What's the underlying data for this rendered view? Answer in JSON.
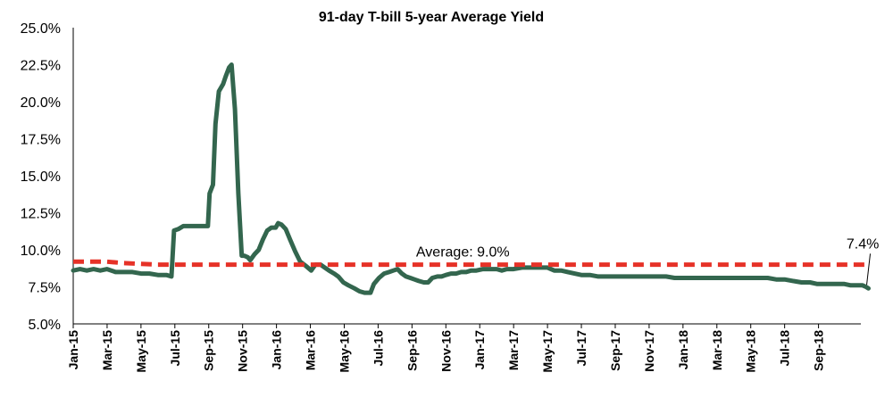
{
  "chart_data": {
    "type": "line",
    "title": "91-day T-bill 5-year Average Yield",
    "xlabel": "",
    "ylabel": "",
    "ylim": [
      5.0,
      25.0
    ],
    "yticks": [
      "5.0%",
      "7.5%",
      "10.0%",
      "12.5%",
      "15.0%",
      "17.5%",
      "20.0%",
      "22.5%",
      "25.0%"
    ],
    "ytick_values": [
      5.0,
      7.5,
      10.0,
      12.5,
      15.0,
      17.5,
      20.0,
      22.5,
      25.0
    ],
    "xticks": [
      "Jan-15",
      "Mar-15",
      "May-15",
      "Jul-15",
      "Sep-15",
      "Nov-15",
      "Jan-16",
      "Mar-16",
      "May-16",
      "Jul-16",
      "Sep-16",
      "Nov-16",
      "Jan-17",
      "Mar-17",
      "May-17",
      "Jul-17",
      "Sep-17",
      "Nov-17",
      "Jan-18",
      "Mar-18",
      "May-18",
      "Jul-18",
      "Sep-18"
    ],
    "x_range_months": [
      0,
      46.5
    ],
    "grid": false,
    "legend": "none",
    "series": [
      {
        "color": "#33664e",
        "points": [
          [
            0,
            8.6
          ],
          [
            0.4,
            8.7
          ],
          [
            0.8,
            8.6
          ],
          [
            1.2,
            8.7
          ],
          [
            1.6,
            8.6
          ],
          [
            2.0,
            8.7
          ],
          [
            2.5,
            8.5
          ],
          [
            3.0,
            8.5
          ],
          [
            3.5,
            8.5
          ],
          [
            4.0,
            8.4
          ],
          [
            4.5,
            8.4
          ],
          [
            5.0,
            8.3
          ],
          [
            5.5,
            8.3
          ],
          [
            5.8,
            8.2
          ],
          [
            5.95,
            11.3
          ],
          [
            6.2,
            11.4
          ],
          [
            6.5,
            11.6
          ],
          [
            7.0,
            11.6
          ],
          [
            7.5,
            11.6
          ],
          [
            7.95,
            11.6
          ],
          [
            8.05,
            13.8
          ],
          [
            8.25,
            14.4
          ],
          [
            8.4,
            18.5
          ],
          [
            8.6,
            20.7
          ],
          [
            8.85,
            21.2
          ],
          [
            9.0,
            21.7
          ],
          [
            9.2,
            22.3
          ],
          [
            9.35,
            22.5
          ],
          [
            9.55,
            19.5
          ],
          [
            9.75,
            13.8
          ],
          [
            9.95,
            9.6
          ],
          [
            10.1,
            9.6
          ],
          [
            10.3,
            9.5
          ],
          [
            10.45,
            9.3
          ],
          [
            10.7,
            9.7
          ],
          [
            10.95,
            10.0
          ],
          [
            11.2,
            10.7
          ],
          [
            11.45,
            11.3
          ],
          [
            11.7,
            11.5
          ],
          [
            11.95,
            11.5
          ],
          [
            12.1,
            11.8
          ],
          [
            12.3,
            11.7
          ],
          [
            12.55,
            11.4
          ],
          [
            12.8,
            10.7
          ],
          [
            13.1,
            9.9
          ],
          [
            13.4,
            9.2
          ],
          [
            13.75,
            8.9
          ],
          [
            14.05,
            8.6
          ],
          [
            14.3,
            9.0
          ],
          [
            14.6,
            9.0
          ],
          [
            14.85,
            8.8
          ],
          [
            15.1,
            8.6
          ],
          [
            15.4,
            8.4
          ],
          [
            15.65,
            8.2
          ],
          [
            15.95,
            7.8
          ],
          [
            16.25,
            7.6
          ],
          [
            16.6,
            7.4
          ],
          [
            16.9,
            7.2
          ],
          [
            17.2,
            7.1
          ],
          [
            17.55,
            7.1
          ],
          [
            17.75,
            7.7
          ],
          [
            18.05,
            8.1
          ],
          [
            18.35,
            8.4
          ],
          [
            18.65,
            8.5
          ],
          [
            18.9,
            8.6
          ],
          [
            19.15,
            8.7
          ],
          [
            19.4,
            8.4
          ],
          [
            19.65,
            8.2
          ],
          [
            19.9,
            8.1
          ],
          [
            20.15,
            8.0
          ],
          [
            20.4,
            7.9
          ],
          [
            20.7,
            7.8
          ],
          [
            20.95,
            7.8
          ],
          [
            21.2,
            8.1
          ],
          [
            21.5,
            8.2
          ],
          [
            21.75,
            8.2
          ],
          [
            22.0,
            8.3
          ],
          [
            22.3,
            8.4
          ],
          [
            22.6,
            8.4
          ],
          [
            22.9,
            8.5
          ],
          [
            23.2,
            8.5
          ],
          [
            23.5,
            8.6
          ],
          [
            23.8,
            8.6
          ],
          [
            24.2,
            8.7
          ],
          [
            24.6,
            8.7
          ],
          [
            25.0,
            8.7
          ],
          [
            25.3,
            8.6
          ],
          [
            25.6,
            8.7
          ],
          [
            26.0,
            8.7
          ],
          [
            26.5,
            8.8
          ],
          [
            27.0,
            8.8
          ],
          [
            27.5,
            8.8
          ],
          [
            28.0,
            8.8
          ],
          [
            28.4,
            8.6
          ],
          [
            28.8,
            8.6
          ],
          [
            29.2,
            8.5
          ],
          [
            29.6,
            8.4
          ],
          [
            30.0,
            8.3
          ],
          [
            30.5,
            8.3
          ],
          [
            31.0,
            8.2
          ],
          [
            32.0,
            8.2
          ],
          [
            33.0,
            8.2
          ],
          [
            34.0,
            8.2
          ],
          [
            35.0,
            8.2
          ],
          [
            35.5,
            8.1
          ],
          [
            36.0,
            8.1
          ],
          [
            37.0,
            8.1
          ],
          [
            38.0,
            8.1
          ],
          [
            39.0,
            8.1
          ],
          [
            40.0,
            8.1
          ],
          [
            41.0,
            8.1
          ],
          [
            41.5,
            8.0
          ],
          [
            42.0,
            8.0
          ],
          [
            42.5,
            7.9
          ],
          [
            43.0,
            7.8
          ],
          [
            43.5,
            7.8
          ],
          [
            43.9,
            7.7
          ],
          [
            44.2,
            7.7
          ],
          [
            44.5,
            7.7
          ],
          [
            45.0,
            7.7
          ],
          [
            45.5,
            7.7
          ],
          [
            45.9,
            7.6
          ],
          [
            46.3,
            7.6
          ],
          [
            46.6,
            7.6
          ],
          [
            46.8,
            7.5
          ],
          [
            46.95,
            7.4
          ]
        ]
      },
      {
        "color": "#e63228",
        "dashed": true,
        "points": [
          [
            0,
            9.2
          ],
          [
            2.0,
            9.2
          ],
          [
            3.0,
            9.1
          ],
          [
            5.0,
            9.0
          ],
          [
            46.95,
            9.0
          ]
        ]
      }
    ],
    "annotations": [
      {
        "text": "Average: 9.0%",
        "x": 23.0,
        "y": 9.55
      },
      {
        "text": "7.4%",
        "x": 46.6,
        "y": 10.1
      }
    ]
  }
}
